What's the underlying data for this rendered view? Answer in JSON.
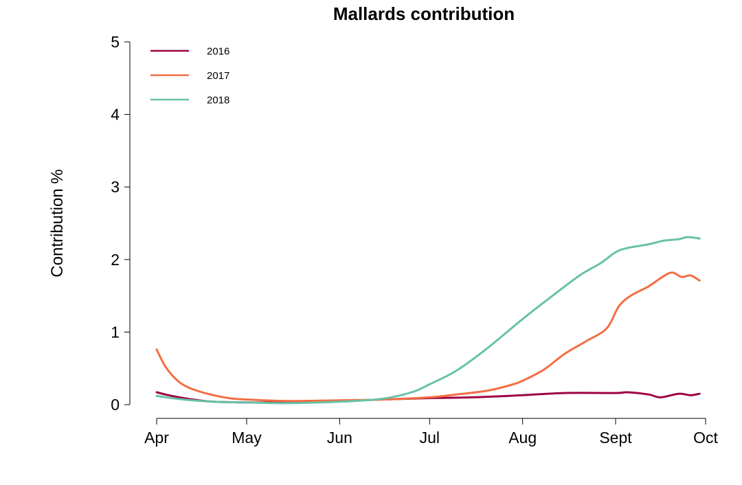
{
  "chart_data": {
    "type": "line",
    "title": "Mallards contribution",
    "xlabel": "",
    "ylabel": "Contribution %",
    "ylim": [
      0,
      5
    ],
    "y_ticks": [
      0,
      1,
      2,
      3,
      4,
      5
    ],
    "x_ticks": [
      "Apr",
      "May",
      "Jun",
      "Jul",
      "Aug",
      "Sept",
      "Oct"
    ],
    "xlim": [
      "2000-04-01",
      "2000-10-01"
    ],
    "grid": false,
    "legend_position": "top-left",
    "series": [
      {
        "name": "2016",
        "color": "#9e0142",
        "points": [
          [
            "04-01",
            0.17
          ],
          [
            "04-05",
            0.13
          ],
          [
            "04-10",
            0.09
          ],
          [
            "04-15",
            0.06
          ],
          [
            "04-20",
            0.04
          ],
          [
            "05-01",
            0.03
          ],
          [
            "05-15",
            0.03
          ],
          [
            "06-01",
            0.05
          ],
          [
            "06-15",
            0.07
          ],
          [
            "07-01",
            0.09
          ],
          [
            "07-15",
            0.1
          ],
          [
            "08-01",
            0.13
          ],
          [
            "08-15",
            0.16
          ],
          [
            "09-01",
            0.16
          ],
          [
            "09-05",
            0.17
          ],
          [
            "09-12",
            0.14
          ],
          [
            "09-16",
            0.1
          ],
          [
            "09-22",
            0.15
          ],
          [
            "09-26",
            0.13
          ],
          [
            "09-29",
            0.15
          ]
        ]
      },
      {
        "name": "2017",
        "color": "#f46d43",
        "points": [
          [
            "04-01",
            0.76
          ],
          [
            "04-04",
            0.52
          ],
          [
            "04-08",
            0.33
          ],
          [
            "04-12",
            0.23
          ],
          [
            "04-18",
            0.15
          ],
          [
            "04-25",
            0.09
          ],
          [
            "05-01",
            0.07
          ],
          [
            "05-15",
            0.05
          ],
          [
            "06-01",
            0.06
          ],
          [
            "06-15",
            0.07
          ],
          [
            "07-01",
            0.1
          ],
          [
            "07-10",
            0.14
          ],
          [
            "07-20",
            0.19
          ],
          [
            "07-28",
            0.27
          ],
          [
            "08-01",
            0.33
          ],
          [
            "08-08",
            0.48
          ],
          [
            "08-15",
            0.7
          ],
          [
            "08-22",
            0.87
          ],
          [
            "08-29",
            1.05
          ],
          [
            "09-02",
            1.35
          ],
          [
            "09-06",
            1.5
          ],
          [
            "09-12",
            1.63
          ],
          [
            "09-17",
            1.77
          ],
          [
            "09-20",
            1.82
          ],
          [
            "09-23",
            1.76
          ],
          [
            "09-26",
            1.78
          ],
          [
            "09-29",
            1.71
          ]
        ]
      },
      {
        "name": "2018",
        "color": "#66c2a5",
        "points": [
          [
            "04-01",
            0.12
          ],
          [
            "04-10",
            0.07
          ],
          [
            "04-20",
            0.04
          ],
          [
            "05-01",
            0.03
          ],
          [
            "05-15",
            0.02
          ],
          [
            "06-01",
            0.04
          ],
          [
            "06-15",
            0.08
          ],
          [
            "06-25",
            0.17
          ],
          [
            "07-01",
            0.28
          ],
          [
            "07-10",
            0.47
          ],
          [
            "07-20",
            0.77
          ],
          [
            "08-01",
            1.18
          ],
          [
            "08-10",
            1.47
          ],
          [
            "08-20",
            1.78
          ],
          [
            "08-27",
            1.95
          ],
          [
            "09-01",
            2.1
          ],
          [
            "09-05",
            2.16
          ],
          [
            "09-12",
            2.21
          ],
          [
            "09-17",
            2.26
          ],
          [
            "09-22",
            2.28
          ],
          [
            "09-25",
            2.31
          ],
          [
            "09-29",
            2.29
          ]
        ]
      }
    ]
  }
}
